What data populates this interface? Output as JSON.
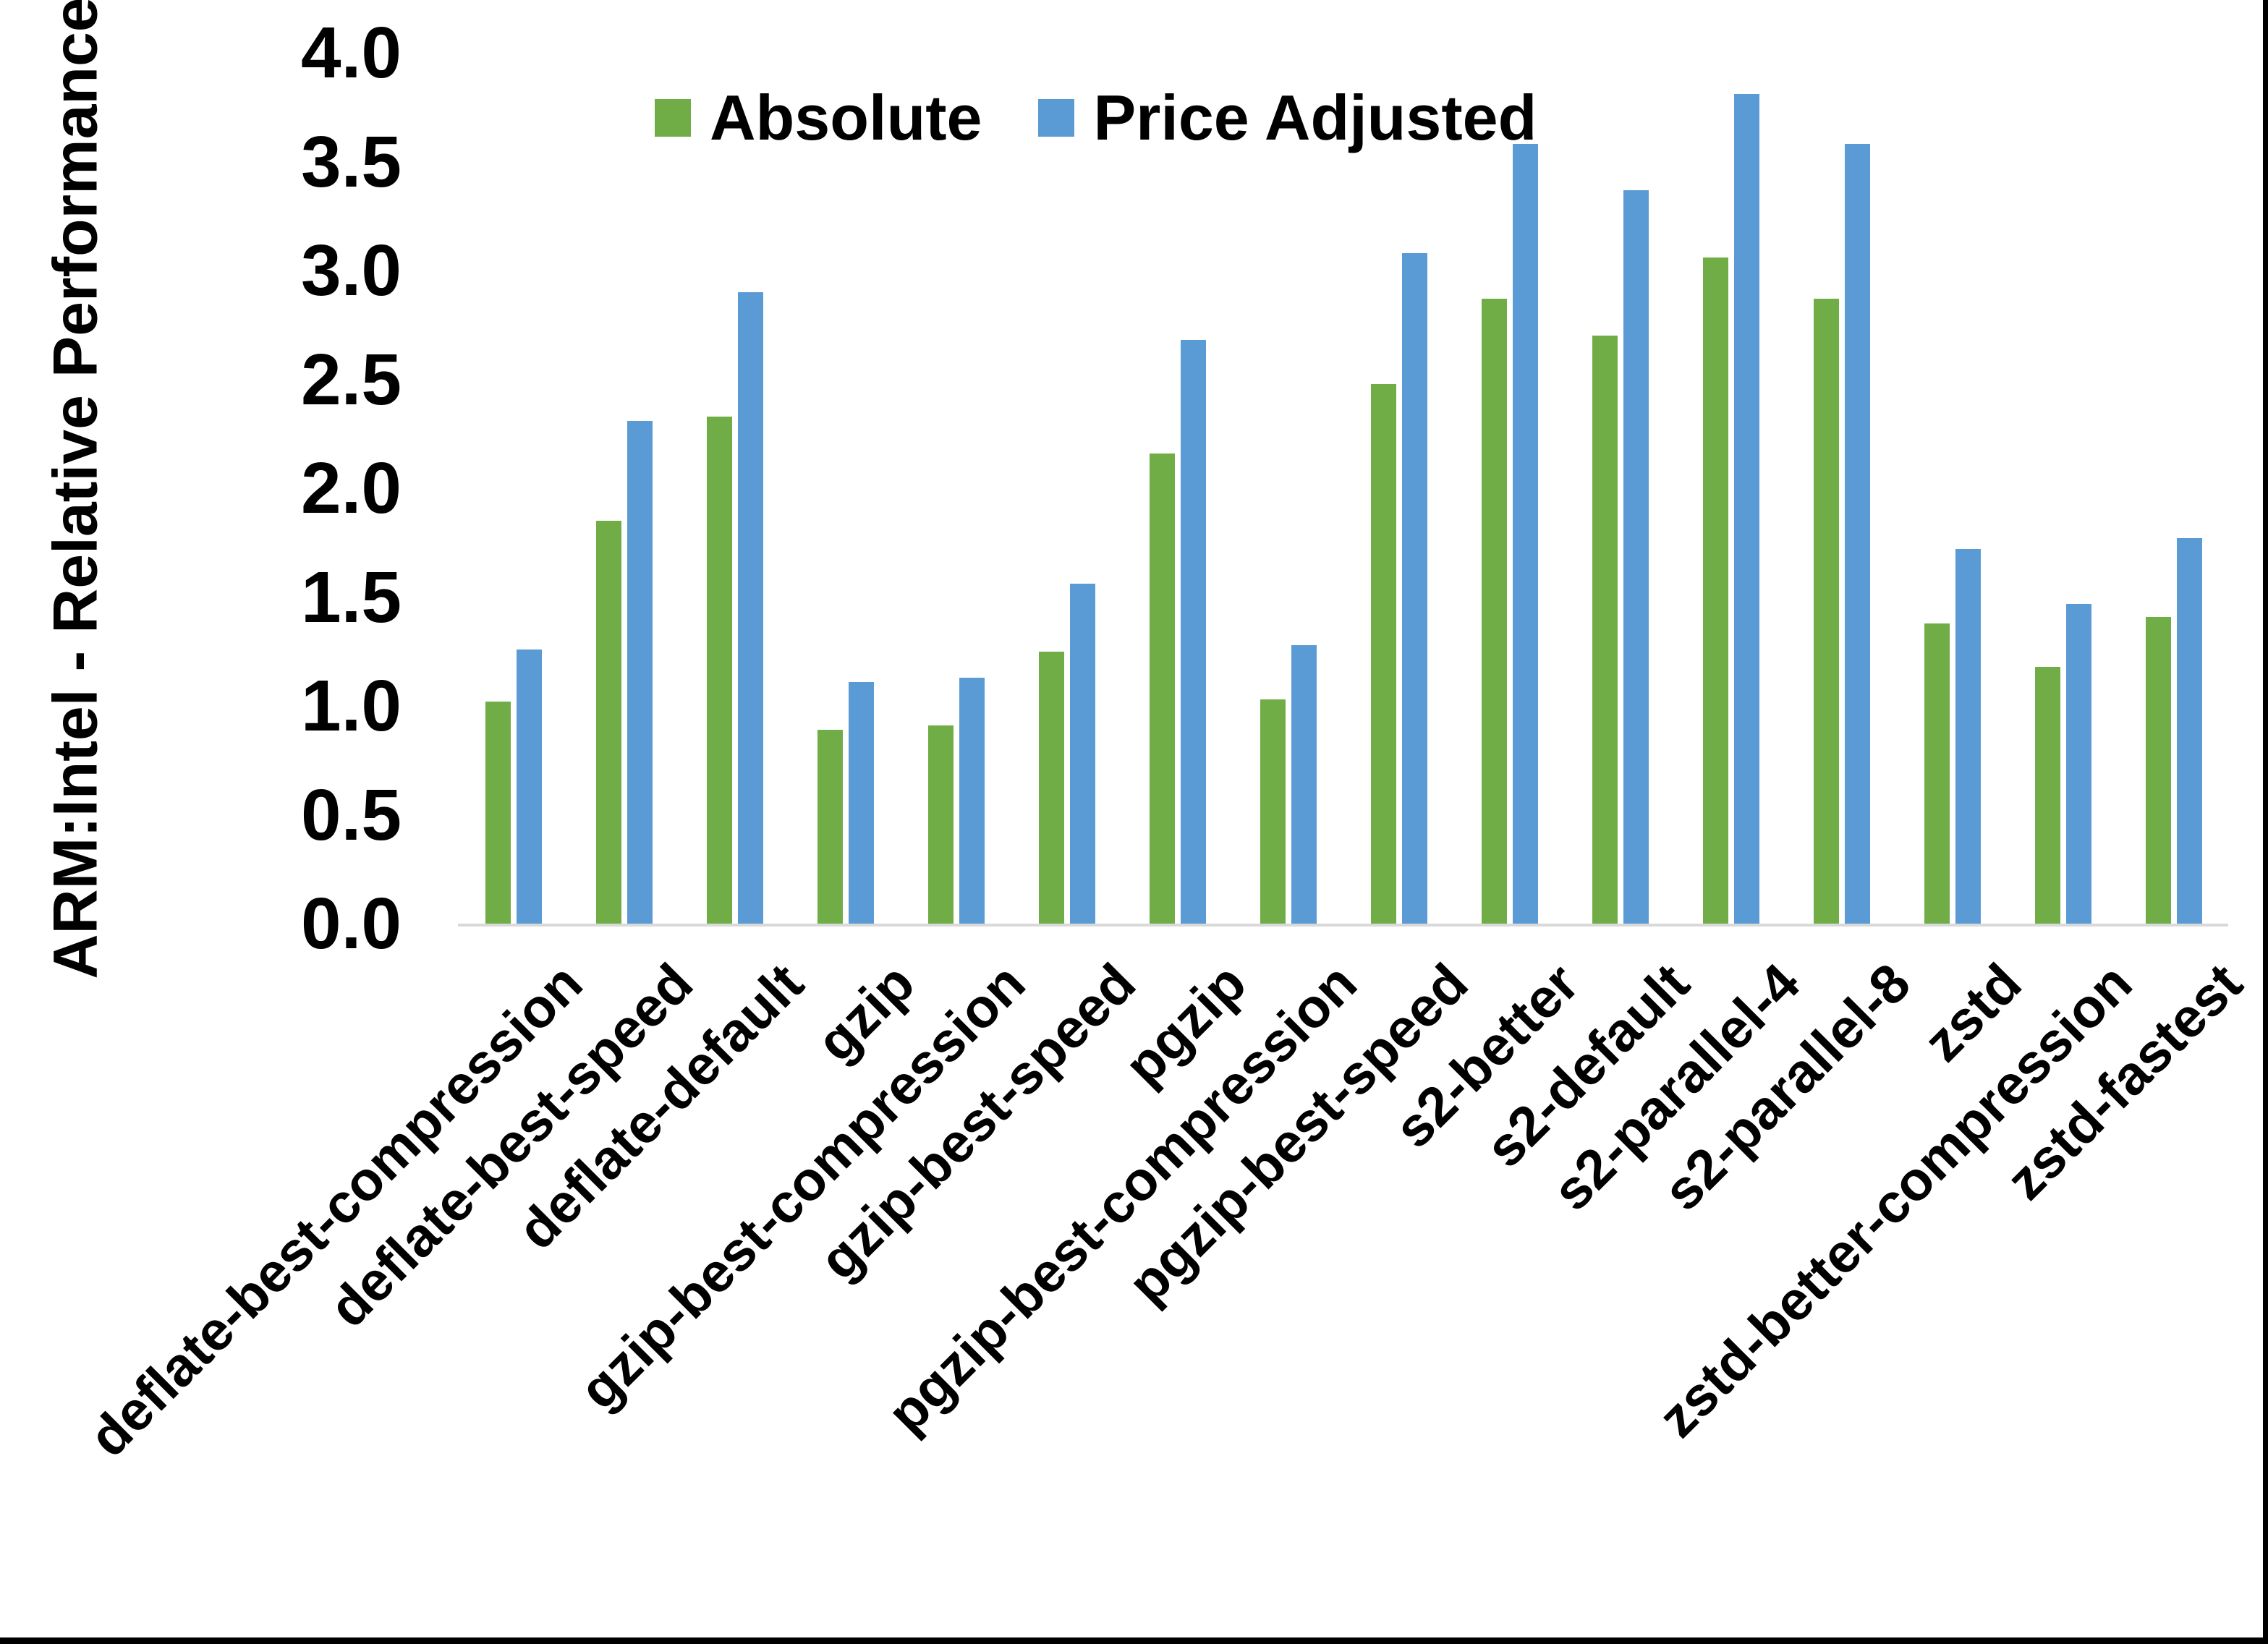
{
  "chart_data": {
    "type": "bar",
    "title": "",
    "xlabel": "",
    "ylabel": "ARM:Intel - Relative Performance",
    "ylim": [
      0.0,
      4.0
    ],
    "ytick_values": [
      4.0,
      3.5,
      3.0,
      2.5,
      2.0,
      1.5,
      1.0,
      0.5,
      0.0
    ],
    "ytick_labels": [
      "4.0",
      "3.5",
      "3.0",
      "2.5",
      "2.0",
      "1.5",
      "1.0",
      "0.5",
      "0.0"
    ],
    "grid": false,
    "legend_position": "top-center",
    "categories": [
      "deflate-best-compression",
      "deflate-best-speed",
      "deflate-default",
      "gzip",
      "gzip-best-compression",
      "gzip-best-speed",
      "pgzip",
      "pgzip-best-compression",
      "pgzip-best-speed",
      "s2-better",
      "s2-default",
      "s2-parallel-4",
      "s2-parallel-8",
      "zstd",
      "zstd-better-compression",
      "zstd-fastest"
    ],
    "series": [
      {
        "name": "Absolute",
        "color": "#70AD47",
        "values": [
          1.02,
          1.85,
          2.33,
          0.89,
          0.91,
          1.25,
          2.16,
          1.03,
          2.48,
          2.87,
          2.7,
          3.06,
          2.87,
          1.38,
          1.18,
          1.41
        ]
      },
      {
        "name": "Price Adjusted",
        "color": "#5B9BD5",
        "values": [
          1.26,
          2.31,
          2.9,
          1.11,
          1.13,
          1.56,
          2.68,
          1.28,
          3.08,
          3.58,
          3.37,
          3.81,
          3.58,
          1.72,
          1.47,
          1.77
        ]
      }
    ],
    "axis_line_color": "#D9D9D9",
    "text_color": "#000000"
  },
  "frame": {
    "border_color": "#000000"
  }
}
